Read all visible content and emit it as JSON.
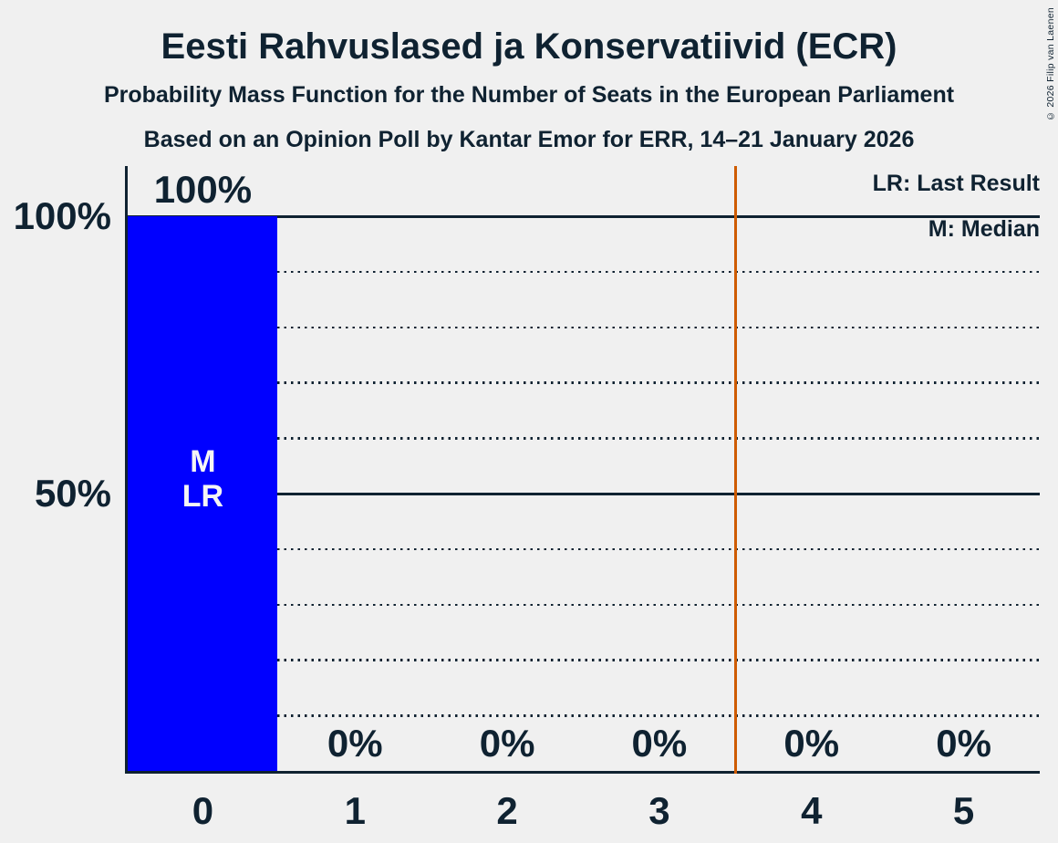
{
  "header": {
    "title": "Eesti Rahvuslased ja Konservatiivid (ECR)",
    "subtitle": "Probability Mass Function for the Number of Seats in the European Parliament",
    "poll_source": "Based on an Opinion Poll by Kantar Emor for ERR, 14–21 January 2026"
  },
  "copyright": "© 2026 Filip van Laenen",
  "legend": {
    "last_result": "LR: Last Result",
    "median": "M: Median"
  },
  "colors": {
    "background": "#F0F0F0",
    "bar": "#0000FF",
    "marker_line": "#CE5B00",
    "text": "#0F2231"
  },
  "chart_data": {
    "type": "bar",
    "title": "Eesti Rahvuslased ja Konservatiivid (ECR)",
    "subtitle": "Probability Mass Function for the Number of Seats in the European Parliament",
    "source_line": "Based on an Opinion Poll by Kantar Emor for ERR, 14–21 January 2026",
    "categories": [
      "0",
      "1",
      "2",
      "3",
      "4",
      "5"
    ],
    "values": [
      100,
      0,
      0,
      0,
      0,
      0
    ],
    "value_labels": [
      "100%",
      "0%",
      "0%",
      "0%",
      "0%",
      "0%"
    ],
    "ylim": [
      0,
      100
    ],
    "ytick_values": [
      100,
      50
    ],
    "ytick_labels": [
      "100%",
      "50%"
    ],
    "y_gridlines_solid": [
      100,
      50
    ],
    "y_gridlines_dotted": [
      90,
      80,
      70,
      60,
      40,
      30,
      20,
      10
    ],
    "legend_entries": [
      "LR: Last Result",
      "M: Median"
    ],
    "bar_annotations": [
      {
        "category": "0",
        "lines": [
          "M",
          "LR"
        ]
      }
    ],
    "marker_value": 3.5,
    "grid": true,
    "legend_position": "top-right"
  }
}
